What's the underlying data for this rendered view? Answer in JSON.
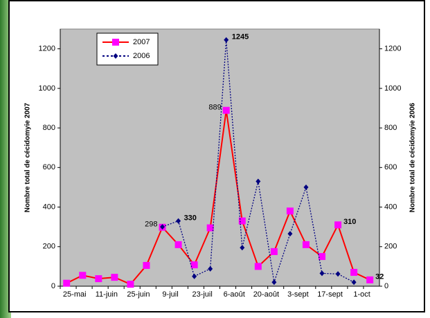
{
  "chart_data": {
    "type": "line",
    "categories": [
      "25-mai",
      null,
      "11-juin",
      null,
      "25-juin",
      null,
      "9-juil",
      null,
      "23-juil",
      null,
      "6-août",
      null,
      "20-août",
      null,
      "3-sept",
      null,
      "17-sept",
      null,
      "1-oct",
      null
    ],
    "y_title": "Nombre total de cécidomyie 2007",
    "y2_title": "Nombre total de cécidomyie 2006",
    "ylim": [
      0,
      1300
    ],
    "yticks": [
      0,
      200,
      400,
      600,
      800,
      1000,
      1200
    ],
    "y2lim": [
      0,
      1300
    ],
    "y2ticks": [
      0,
      200,
      400,
      600,
      800,
      1000,
      1200
    ],
    "legend": "upper left",
    "series": [
      {
        "name": "2007",
        "color": "#ff0000",
        "marker_color": "#ff00ff",
        "marker": "square",
        "values": [
          15,
          55,
          38,
          45,
          10,
          105,
          298,
          210,
          108,
          295,
          889,
          330,
          100,
          175,
          380,
          210,
          150,
          310,
          70,
          32
        ],
        "labeled_indices": [
          6,
          10,
          17,
          19
        ]
      },
      {
        "name": "2006",
        "color": "#000080",
        "marker": "diamond",
        "dash": "dotted",
        "axis": "y2",
        "values": [
          null,
          null,
          null,
          null,
          null,
          null,
          300,
          330,
          50,
          88,
          1245,
          195,
          530,
          20,
          265,
          500,
          65,
          62,
          20,
          null
        ],
        "labeled_indices": [
          7,
          10
        ]
      }
    ]
  }
}
